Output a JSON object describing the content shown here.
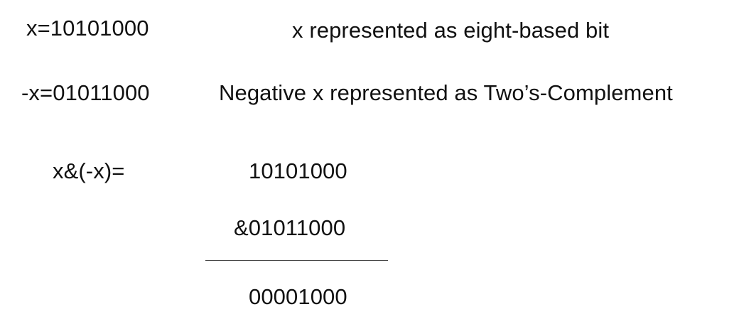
{
  "rows": [
    {
      "expr": "x=10101000",
      "desc": "x represented as eight-based bit"
    },
    {
      "expr": "-x=01011000",
      "desc": "Negative x represented as Two’s-Complement"
    }
  ],
  "operation": {
    "label": "x&(-x)=",
    "operand1": "10101000",
    "operand2": "&01011000",
    "result": "00001000"
  }
}
